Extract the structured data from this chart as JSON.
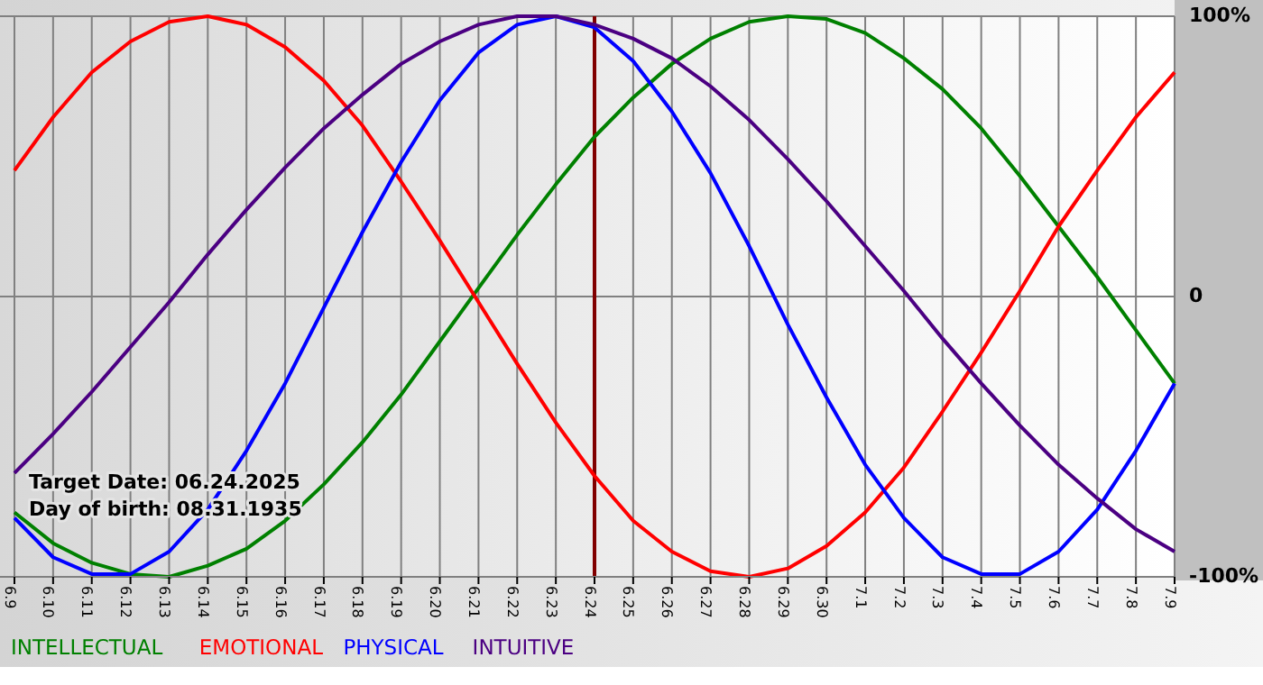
{
  "chart_data": {
    "type": "line",
    "categories": [
      "6.9",
      "6.10",
      "6.11",
      "6.12",
      "6.13",
      "6.14",
      "6.15",
      "6.16",
      "6.17",
      "6.18",
      "6.19",
      "6.20",
      "6.21",
      "6.22",
      "6.23",
      "6.24",
      "6.25",
      "6.26",
      "6.27",
      "6.28",
      "6.29",
      "6.30",
      "7.1",
      "7.2",
      "7.3",
      "7.4",
      "7.5",
      "7.6",
      "7.7",
      "7.8",
      "7.9"
    ],
    "series": [
      {
        "name": "INTELLECTUAL",
        "color": "#008000",
        "values": [
          -77,
          -88,
          -95,
          -99,
          -100,
          -96,
          -90,
          -80,
          -67,
          -52,
          -35,
          -16,
          3,
          22,
          40,
          57,
          71,
          83,
          92,
          98,
          100,
          99,
          94,
          85,
          74,
          60,
          43,
          25,
          7,
          -12,
          -31
        ]
      },
      {
        "name": "EMOTIONAL",
        "color": "#ff0000",
        "values": [
          45,
          64,
          80,
          91,
          98,
          100,
          97,
          89,
          77,
          61,
          41,
          20,
          -2,
          -24,
          -45,
          -64,
          -80,
          -91,
          -98,
          -100,
          -97,
          -89,
          -77,
          -61,
          -41,
          -20,
          2,
          25,
          45,
          64,
          80
        ]
      },
      {
        "name": "PHYSICAL",
        "color": "#0000ff",
        "values": [
          -79,
          -93,
          -99,
          -99,
          -91,
          -76,
          -55,
          -31,
          -4,
          23,
          48,
          70,
          87,
          97,
          100,
          96,
          84,
          66,
          44,
          18,
          -10,
          -36,
          -60,
          -79,
          -93,
          -99,
          -99,
          -91,
          -76,
          -55,
          -31
        ]
      },
      {
        "name": "INTUITIVE",
        "color": "#4b0082",
        "values": [
          -63,
          -49,
          -34,
          -18,
          -2,
          15,
          31,
          46,
          60,
          72,
          83,
          91,
          97,
          100,
          100,
          97,
          92,
          85,
          75,
          63,
          49,
          34,
          18,
          2,
          -15,
          -31,
          -46,
          -60,
          -72,
          -83,
          -91
        ]
      }
    ],
    "ylim": [
      -100,
      100
    ],
    "yticks": [
      {
        "value": 100,
        "label": "100%"
      },
      0,
      {
        "value": -100,
        "label": "-100%"
      }
    ],
    "ref_lines": [
      {
        "axis": "x",
        "value": "6.24",
        "color": "#800000"
      }
    ],
    "annotations": [
      "Target Date: 06.24.2025",
      "Day of birth: 08.31.1935"
    ],
    "grid": true,
    "legend": "bottom",
    "marker": "none",
    "line_style": "solid"
  }
}
